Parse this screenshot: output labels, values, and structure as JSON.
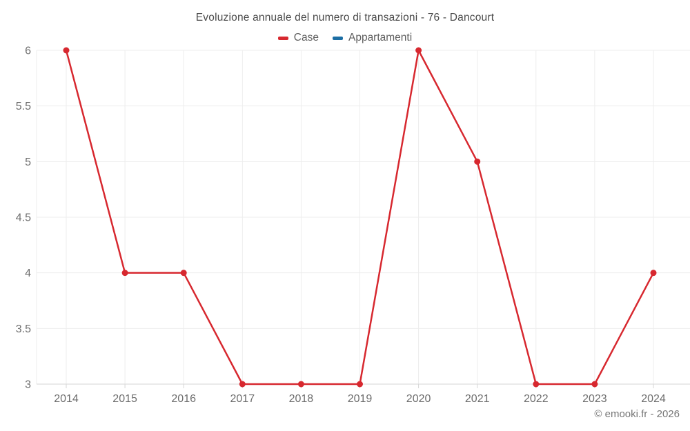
{
  "attribution": "© emooki.fr - 2026",
  "chart_data": {
    "type": "line",
    "title": "Evoluzione annuale del numero di transazioni - 76 - Dancourt",
    "categories": [
      "2014",
      "2015",
      "2016",
      "2017",
      "2018",
      "2019",
      "2020",
      "2021",
      "2022",
      "2023",
      "2024"
    ],
    "series": [
      {
        "name": "Case",
        "color": "#d7282f",
        "values": [
          6,
          4,
          4,
          3,
          3,
          3,
          6,
          5,
          3,
          3,
          4
        ]
      },
      {
        "name": "Appartamenti",
        "color": "#1c6ea4",
        "values": []
      }
    ],
    "xlabel": "",
    "ylabel": "",
    "ylim": [
      3,
      6
    ],
    "yticks": [
      3,
      3.5,
      4,
      4.5,
      5,
      5.5,
      6
    ],
    "grid": true,
    "legend_position": "top"
  },
  "colors": {
    "grid_line": "#ededed",
    "axis_line": "#d6d6d6",
    "tick_label": "#6d6d6d",
    "title_text": "#4a4a4a",
    "legend_text": "#5f5f5f",
    "attribution_text": "#757575"
  }
}
